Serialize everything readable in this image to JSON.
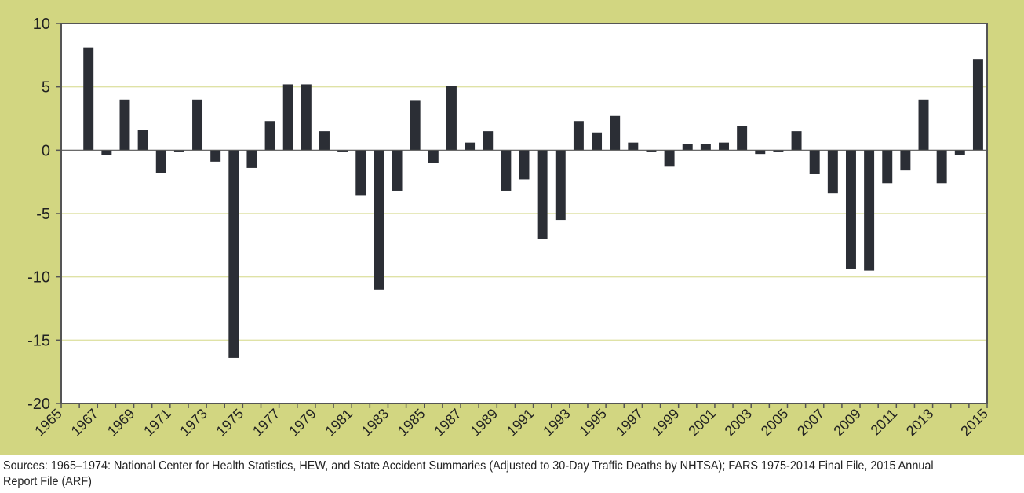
{
  "chart_data": {
    "type": "bar",
    "title": "",
    "xlabel": "",
    "ylabel": "",
    "ylim": [
      -20,
      10
    ],
    "yticks": [
      "10",
      "5",
      "0",
      "-5",
      "-10",
      "-15",
      "-20"
    ],
    "ytick_values": [
      10,
      5,
      0,
      -5,
      -10,
      -15,
      -20
    ],
    "grid": true,
    "categories": [
      "1965",
      "1966",
      "1967",
      "1968",
      "1969",
      "1970",
      "1971",
      "1972",
      "1973",
      "1974",
      "1975",
      "1976",
      "1977",
      "1978",
      "1979",
      "1980",
      "1981",
      "1982",
      "1983",
      "1984",
      "1985",
      "1986",
      "1987",
      "1988",
      "1989",
      "1990",
      "1991",
      "1992",
      "1993",
      "1994",
      "1995",
      "1996",
      "1997",
      "1998",
      "1999",
      "2000",
      "2001",
      "2002",
      "2003",
      "2004",
      "2005",
      "2006",
      "2007",
      "2008",
      "2009",
      "2010",
      "2011",
      "2012",
      "2013",
      "2014",
      "2015"
    ],
    "xtick_labels": [
      "1965",
      "1967",
      "1969",
      "1971",
      "1973",
      "1975",
      "1977",
      "1979",
      "1981",
      "1983",
      "1985",
      "1987",
      "1989",
      "1991",
      "1993",
      "1995",
      "1997",
      "1999",
      "2001",
      "2003",
      "2005",
      "2007",
      "2009",
      "2011",
      "2013",
      "2015"
    ],
    "values": [
      null,
      8.1,
      -0.4,
      4.0,
      1.6,
      -1.8,
      -0.1,
      4.0,
      -0.9,
      -16.4,
      -1.4,
      2.3,
      5.2,
      5.2,
      1.5,
      -0.1,
      -3.6,
      -11.0,
      -3.2,
      3.9,
      -1.0,
      5.1,
      0.6,
      1.5,
      -3.2,
      -2.3,
      -7.0,
      -5.5,
      2.3,
      1.4,
      2.7,
      0.6,
      -0.1,
      -1.3,
      0.5,
      0.5,
      0.6,
      1.9,
      -0.3,
      -0.1,
      1.5,
      -1.9,
      -3.4,
      -9.4,
      -9.5,
      -2.6,
      -1.6,
      4.0,
      -2.6,
      -0.4,
      7.2
    ],
    "colors": {
      "bar": "#2b2e35",
      "panel": "#d2d681",
      "grid": "#dfe2a6",
      "axis": "#555555"
    }
  },
  "footer": {
    "source": "Sources: 1965–1974: National Center for Health Statistics, HEW, and State Accident Summaries (Adjusted to 30-Day Traffic Deaths by NHTSA); FARS 1975-2014 Final File, 2015 Annual Report File (ARF)"
  }
}
